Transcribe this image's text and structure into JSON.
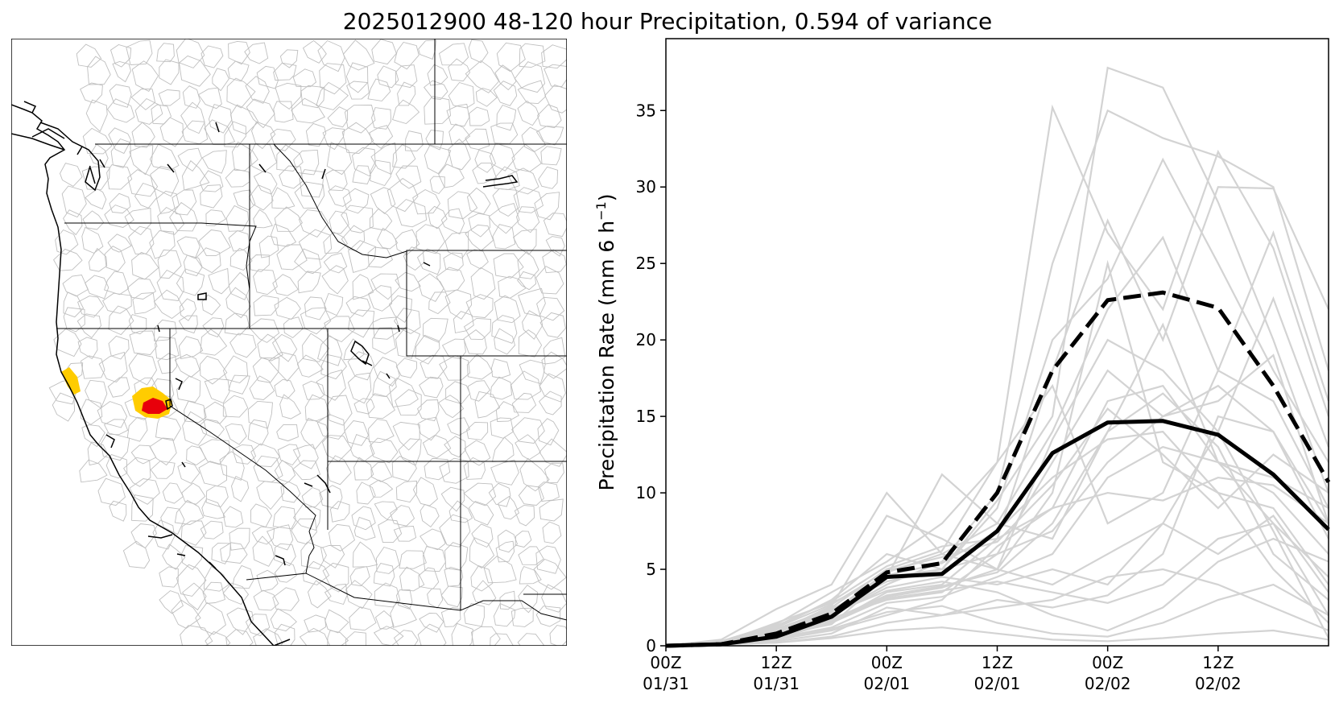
{
  "figure": {
    "title": "2025012900 48-120 hour Precipitation, 0.594 of variance"
  },
  "map": {
    "description_layers": [
      "state-borders",
      "coastline",
      "basin-boundaries",
      "highlighted-basins"
    ],
    "highlight_colors": {
      "high": "#e8000b",
      "moderate": "#ffcc00"
    },
    "border_color": "#000000",
    "basin_color": "#bfbfbf"
  },
  "chart_data": {
    "type": "line",
    "ylabel_main": "Precipitation Rate (mm 6 h",
    "ylabel_exp": "−1",
    "ylabel_close": ")",
    "ylim": [
      0,
      39.7
    ],
    "xlim": [
      0,
      18
    ],
    "yticks": [
      0,
      5,
      10,
      15,
      20,
      25,
      30,
      35
    ],
    "xticks": [
      {
        "x": 0,
        "line1": "00Z",
        "line2": "01/31"
      },
      {
        "x": 3,
        "line1": "12Z",
        "line2": "01/31"
      },
      {
        "x": 6,
        "line1": "00Z",
        "line2": "02/01"
      },
      {
        "x": 9,
        "line1": "12Z",
        "line2": "02/01"
      },
      {
        "x": 12,
        "line1": "00Z",
        "line2": "02/02"
      },
      {
        "x": 15,
        "line1": "12Z",
        "line2": "02/02"
      }
    ],
    "x": [
      0,
      1.5,
      3,
      4.5,
      6,
      7.5,
      9,
      10.5,
      12,
      13.5,
      15,
      16.5,
      18
    ],
    "ensemble_color": "#d3d3d3",
    "ensemble": [
      [
        0,
        0.2,
        1.5,
        2.8,
        4.5,
        5.0,
        9.5,
        15.0,
        37.8,
        36.5,
        29.0,
        20.0,
        10.0
      ],
      [
        0,
        0.3,
        1.0,
        2.5,
        5.0,
        6.2,
        12.0,
        35.2,
        27.0,
        22.0,
        32.3,
        26.0,
        15.0
      ],
      [
        0,
        0.2,
        0.8,
        2.0,
        4.0,
        5.5,
        10.0,
        25.0,
        35.0,
        33.2,
        32.0,
        30.0,
        18.0
      ],
      [
        0,
        0.1,
        0.5,
        1.5,
        3.5,
        4.0,
        7.0,
        18.0,
        27.8,
        20.0,
        30.0,
        29.9,
        22.0
      ],
      [
        0,
        0.3,
        1.2,
        3.0,
        6.0,
        5.0,
        9.0,
        20.0,
        24.0,
        31.8,
        25.0,
        18.0,
        12.0
      ],
      [
        0,
        0.2,
        1.0,
        2.2,
        4.8,
        6.0,
        8.0,
        14.0,
        22.0,
        26.7,
        18.0,
        27.0,
        16.0
      ],
      [
        0,
        0.4,
        2.4,
        4.0,
        10.0,
        6.0,
        5.0,
        4.0,
        6.0,
        8.0,
        14.0,
        22.7,
        13.0
      ],
      [
        0,
        0.1,
        0.6,
        1.8,
        3.0,
        3.5,
        6.0,
        12.0,
        18.0,
        15.0,
        16.0,
        19.0,
        8.0
      ],
      [
        0,
        0.2,
        0.9,
        2.6,
        8.5,
        7.0,
        5.0,
        10.0,
        25.0,
        12.0,
        10.0,
        9.0,
        4.0
      ],
      [
        0,
        0.2,
        0.7,
        1.4,
        4.5,
        11.2,
        8.0,
        7.0,
        14.0,
        21.0,
        12.0,
        10.0,
        6.0
      ],
      [
        0,
        0.3,
        1.4,
        3.5,
        5.5,
        8.0,
        12.0,
        17.0,
        8.0,
        10.0,
        18.0,
        16.0,
        9.0
      ],
      [
        0,
        0.1,
        0.4,
        1.0,
        2.0,
        3.0,
        6.5,
        9.0,
        16.0,
        17.0,
        12.0,
        8.0,
        2.0
      ],
      [
        0,
        0.2,
        0.8,
        2.0,
        3.8,
        4.5,
        4.0,
        5.0,
        4.0,
        8.0,
        6.0,
        8.5,
        3.5
      ],
      [
        0,
        0.1,
        0.3,
        0.8,
        2.5,
        2.0,
        3.0,
        2.5,
        3.3,
        6.0,
        15.0,
        14.0,
        7.0
      ],
      [
        0,
        0.2,
        0.6,
        1.6,
        3.2,
        3.8,
        5.0,
        13.5,
        20.0,
        18.0,
        14.0,
        7.5,
        0.5
      ],
      [
        0,
        0.1,
        0.5,
        1.2,
        2.8,
        3.2,
        4.5,
        6.0,
        11.0,
        13.0,
        12.0,
        11.0,
        9.0
      ],
      [
        0,
        0.2,
        1.1,
        2.4,
        4.2,
        5.0,
        6.0,
        7.5,
        12.0,
        15.0,
        17.0,
        14.0,
        8.0
      ],
      [
        0,
        0.1,
        0.2,
        0.6,
        1.5,
        2.0,
        2.5,
        3.0,
        4.5,
        5.0,
        4.0,
        2.5,
        1.0
      ],
      [
        0,
        0.3,
        1.3,
        2.9,
        5.2,
        6.5,
        7.0,
        9.0,
        10.0,
        9.5,
        11.0,
        10.5,
        8.0
      ],
      [
        0,
        0.2,
        0.9,
        2.1,
        3.6,
        4.2,
        3.5,
        2.0,
        1.0,
        2.5,
        5.5,
        7.0,
        5.5
      ],
      [
        0,
        0.1,
        0.4,
        1.1,
        2.2,
        2.6,
        1.5,
        0.8,
        0.6,
        1.5,
        3.0,
        4.0,
        2.0
      ],
      [
        0,
        0.1,
        0.2,
        0.5,
        1.0,
        1.2,
        0.8,
        0.4,
        0.3,
        0.5,
        0.8,
        1.0,
        0.4
      ],
      [
        0,
        0.2,
        0.7,
        1.7,
        3.3,
        3.9,
        4.8,
        8.0,
        14.0,
        16.5,
        13.0,
        6.0,
        3.0
      ],
      [
        0,
        0.2,
        1.0,
        2.3,
        4.6,
        5.4,
        7.5,
        11.0,
        13.5,
        14.0,
        10.0,
        5.0,
        1.5
      ],
      [
        0,
        0.1,
        0.6,
        1.5,
        3.1,
        3.6,
        4.2,
        3.5,
        2.8,
        4.0,
        7.0,
        8.0,
        4.5
      ],
      [
        0,
        0.3,
        1.2,
        2.7,
        4.9,
        5.8,
        6.8,
        10.5,
        15.5,
        12.5,
        9.0,
        12.5,
        10.0
      ]
    ],
    "series": [
      {
        "name": "",
        "style": "dashed",
        "color": "#000000",
        "values": [
          0,
          0.1,
          0.8,
          2.1,
          4.8,
          5.4,
          10.0,
          18.0,
          22.6,
          23.1,
          22.1,
          17.0,
          10.7
        ]
      },
      {
        "name": "",
        "style": "solid",
        "color": "#000000",
        "values": [
          0,
          0.1,
          0.6,
          1.9,
          4.5,
          4.7,
          7.5,
          12.6,
          14.6,
          14.7,
          13.8,
          11.2,
          7.6
        ]
      }
    ]
  }
}
